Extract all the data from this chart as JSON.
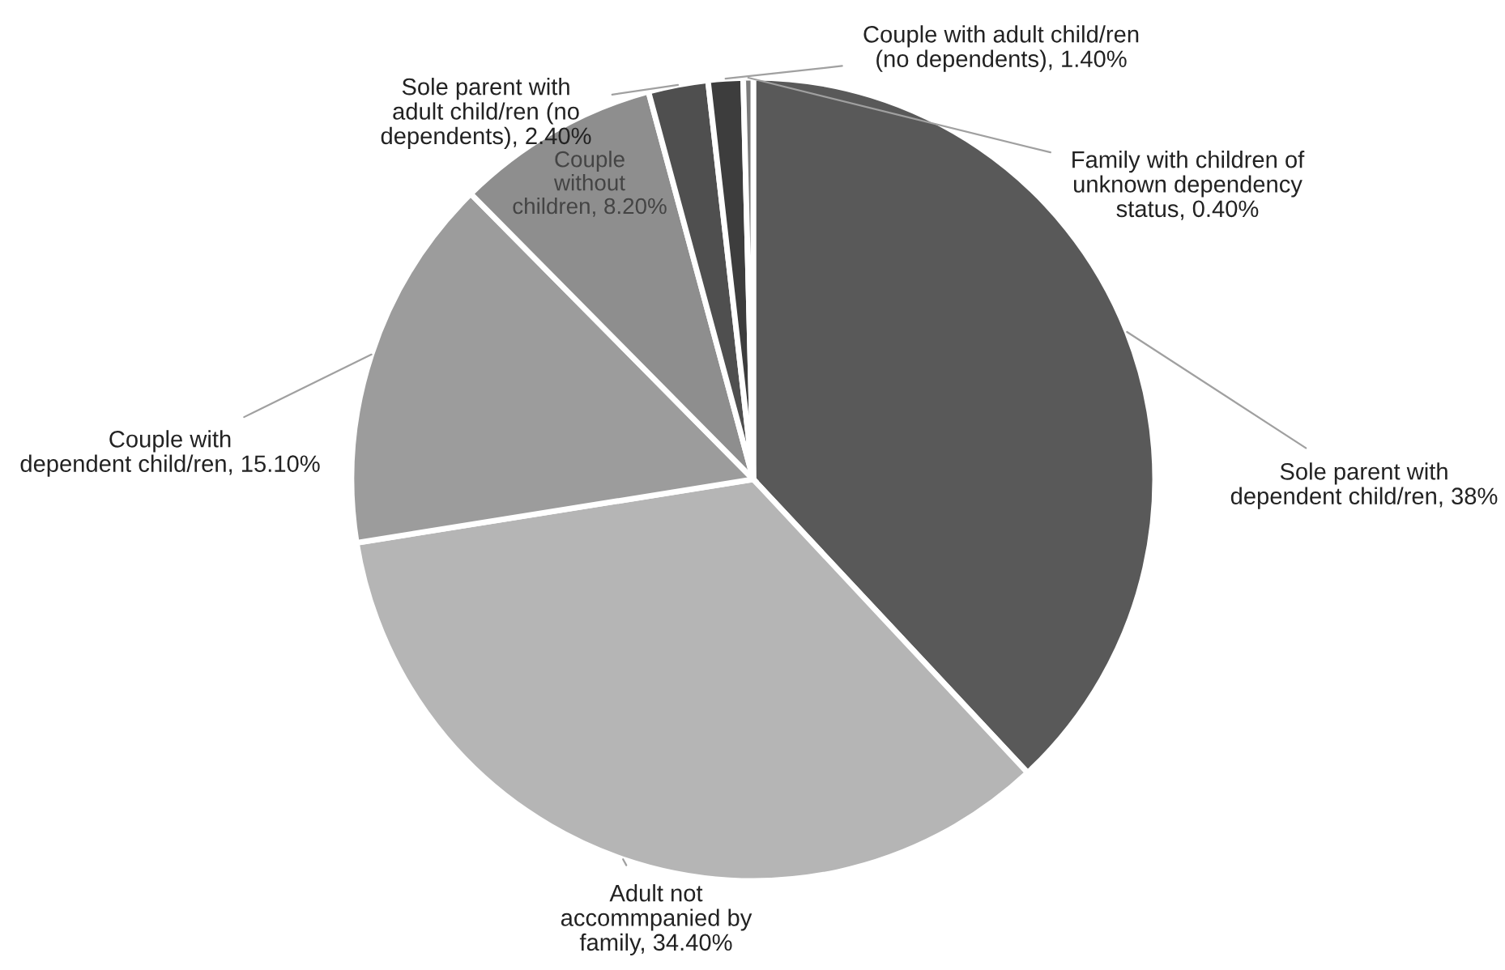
{
  "chart_data": {
    "type": "pie",
    "categories": [
      "Sole parent with\ndependent child/ren",
      "Adult not\naccommpanied by\nfamily",
      "Couple with\ndependent child/ren",
      "Couple\nwithout\nchildren",
      "Sole parent with\nadult child/ren (no\ndependents)",
      "Couple with adult child/ren\n(no dependents)",
      "Family with children of\nunknown dependency\nstatus"
    ],
    "values": [
      38,
      34.4,
      15.1,
      8.2,
      2.4,
      1.4,
      0.4
    ],
    "value_labels": [
      "38%",
      "34.40%",
      "15.10%",
      "8.20%",
      "2.40%",
      "1.40%",
      "0.40%"
    ],
    "colors": [
      "#595959",
      "#b5b5b5",
      "#9c9c9c",
      "#8e8e8e",
      "#4f4f4f",
      "#3d3d3d",
      "#7a7a7a"
    ]
  }
}
